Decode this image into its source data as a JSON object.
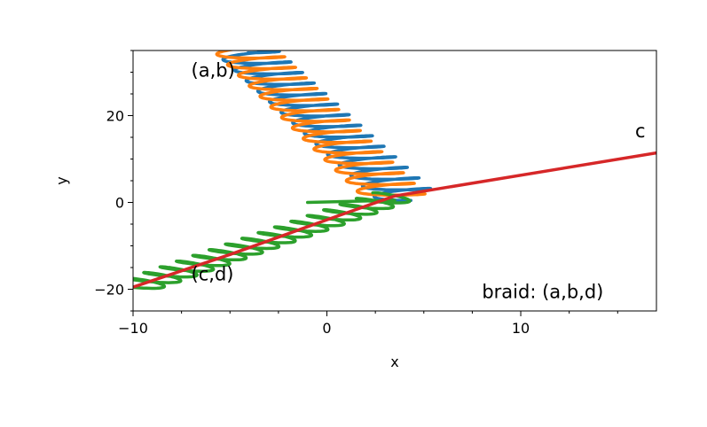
{
  "chart_data": {
    "type": "line",
    "xlabel": "x",
    "ylabel": "y",
    "xlim": [
      -10,
      17
    ],
    "ylim": [
      -25,
      35
    ],
    "xticks": [
      -10,
      0,
      10
    ],
    "yticks": [
      -20,
      0,
      20
    ],
    "grid": false,
    "legend": "none",
    "annotations": [
      {
        "text": "(a,b)",
        "x": -7,
        "y": 29
      },
      {
        "text": "c",
        "x": 15.9,
        "y": 15
      },
      {
        "text": "(c,d)",
        "x": -7,
        "y": -18
      },
      {
        "text": "braid: (a,b,d)",
        "x": 8,
        "y": -22
      }
    ],
    "series": [
      {
        "color": "#1f77b4",
        "kind": "helix",
        "x": [
          -4.2,
          4.2
        ],
        "y": [
          35,
          1
        ],
        "amplitude": 0.55,
        "turns": 14,
        "phase": 0
      },
      {
        "color": "#ff7f0e",
        "kind": "helix",
        "x": [
          -4.2,
          3.6
        ],
        "y": [
          35,
          1
        ],
        "amplitude": 0.55,
        "turns": 14,
        "phase": 3.14
      },
      {
        "color": "#2ca02c",
        "kind": "helix",
        "x": [
          -10,
          3.5
        ],
        "y": [
          -19.5,
          1.5
        ],
        "amplitude": 0.45,
        "turns": 16,
        "phase": 1.57
      },
      {
        "color": "#2ca02c",
        "kind": "line",
        "x": [
          -1,
          3.5
        ],
        "y": [
          0,
          0.5
        ]
      },
      {
        "color": "#d62728",
        "kind": "line",
        "x": [
          -10,
          -5,
          0,
          3.5,
          17
        ],
        "y": [
          -19.5,
          -12,
          -4,
          1.5,
          11.4
        ]
      }
    ]
  }
}
